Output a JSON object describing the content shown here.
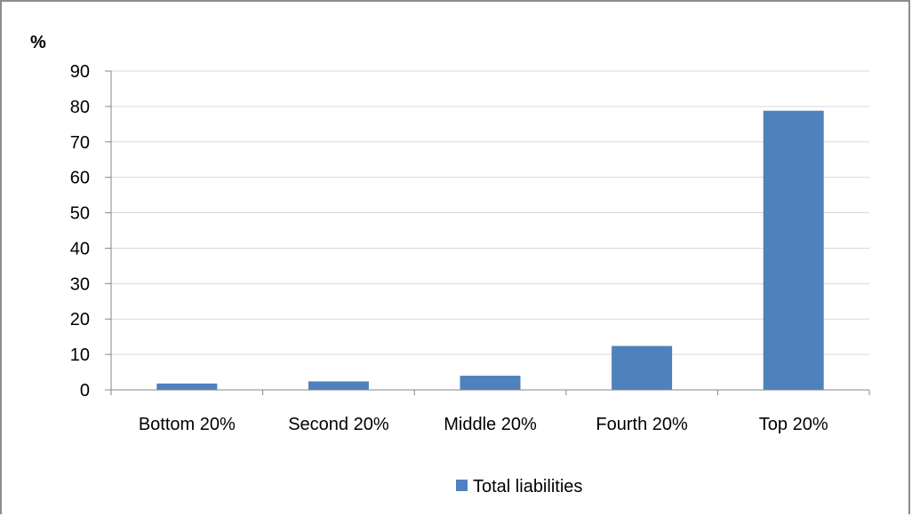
{
  "chart_data": {
    "type": "bar",
    "unit_label": "%",
    "categories": [
      "Bottom 20%",
      "Second 20%",
      "Middle 20%",
      "Fourth 20%",
      "Top 20%"
    ],
    "series": [
      {
        "name": "Total liabilities",
        "values": [
          1.8,
          2.4,
          4.0,
          12.4,
          78.8
        ],
        "color": "#4f81bd"
      }
    ],
    "ylim": [
      0,
      90
    ],
    "yticks": [
      0,
      10,
      20,
      30,
      40,
      50,
      60,
      70,
      80,
      90
    ],
    "grid": true,
    "legend": "bottom"
  }
}
